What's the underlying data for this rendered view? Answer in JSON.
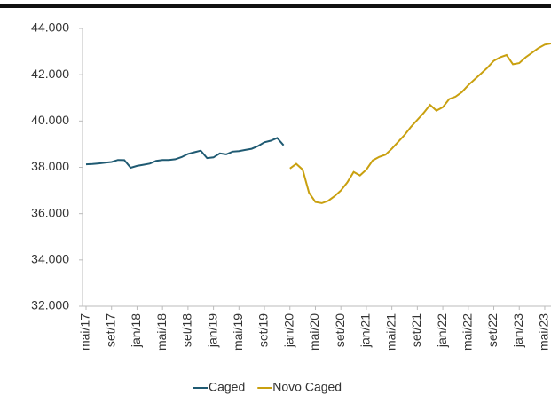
{
  "chart_data": {
    "type": "line",
    "categories": [
      "mai/17",
      null,
      null,
      null,
      "set/17",
      null,
      null,
      null,
      "jan/18",
      null,
      null,
      null,
      "mai/18",
      null,
      null,
      null,
      "set/18",
      null,
      null,
      null,
      "jan/19",
      null,
      null,
      null,
      "mai/19",
      null,
      null,
      null,
      "set/19",
      null,
      null,
      null,
      "jan/20",
      null,
      null,
      null,
      "mai/20",
      null,
      null,
      null,
      "set/20",
      null,
      null,
      null,
      "jan/21",
      null,
      null,
      null,
      "mai/21",
      null,
      null,
      null,
      "set/21",
      null,
      null,
      null,
      "jan/22",
      null,
      null,
      null,
      "mai/22",
      null,
      null,
      null,
      "set/22",
      null,
      null,
      null,
      "jan/23",
      null,
      null,
      null,
      "mai/23",
      null
    ],
    "series": [
      {
        "name": "Caged",
        "color": "#1f5a72",
        "values": [
          38130,
          38140,
          38170,
          38200,
          38230,
          38320,
          38310,
          37980,
          38060,
          38110,
          38160,
          38280,
          38320,
          38320,
          38350,
          38440,
          38580,
          38650,
          38720,
          38400,
          38430,
          38600,
          38560,
          38680,
          38700,
          38750,
          38800,
          38920,
          39080,
          39150,
          39270,
          38950,
          null,
          null,
          null,
          null,
          null,
          null,
          null,
          null,
          null,
          null,
          null,
          null,
          null,
          null,
          null,
          null,
          null,
          null,
          null,
          null,
          null,
          null,
          null,
          null,
          null,
          null,
          null,
          null,
          null,
          null,
          null,
          null,
          null,
          null,
          null,
          null,
          null,
          null,
          null,
          null,
          null,
          null
        ]
      },
      {
        "name": "Novo Caged",
        "color": "#c9a00f",
        "values": [
          null,
          null,
          null,
          null,
          null,
          null,
          null,
          null,
          null,
          null,
          null,
          null,
          null,
          null,
          null,
          null,
          null,
          null,
          null,
          null,
          null,
          null,
          null,
          null,
          null,
          null,
          null,
          null,
          null,
          null,
          null,
          null,
          37950,
          38150,
          37900,
          36900,
          36500,
          36450,
          36550,
          36750,
          37000,
          37350,
          37800,
          37650,
          37900,
          38300,
          38450,
          38550,
          38800,
          39100,
          39400,
          39750,
          40050,
          40350,
          40700,
          40450,
          40600,
          40950,
          41050,
          41250,
          41550,
          41800,
          42050,
          42300,
          42600,
          42750,
          42850,
          42450,
          42500,
          42750,
          42950,
          43150,
          43300,
          43350
        ]
      }
    ],
    "ylim": [
      32000,
      44000
    ],
    "yticks": [
      {
        "value": 32000,
        "label": "32.000"
      },
      {
        "value": 34000,
        "label": "34.000"
      },
      {
        "value": 36000,
        "label": "36.000"
      },
      {
        "value": 38000,
        "label": "38.000"
      },
      {
        "value": 40000,
        "label": "40.000"
      },
      {
        "value": 42000,
        "label": "42.000"
      },
      {
        "value": 44000,
        "label": "44.000"
      }
    ],
    "legend": "bottom",
    "grid": false
  }
}
